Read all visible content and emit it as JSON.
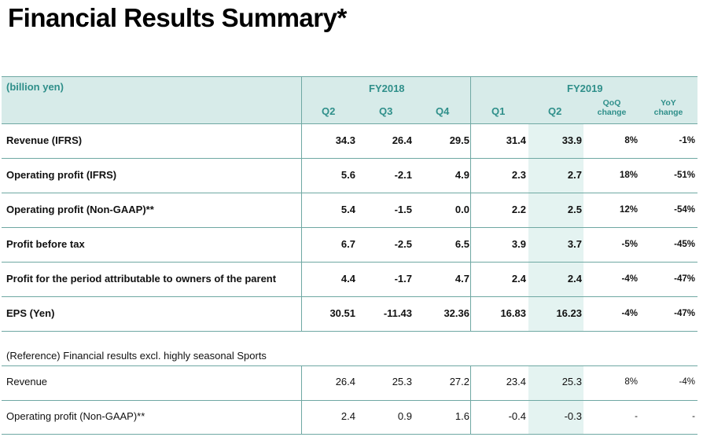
{
  "title": "Financial Results Summary*",
  "header": {
    "unit": "(billion yen)",
    "fy2018": "FY2018",
    "fy2019": "FY2019",
    "cols": [
      "Q2",
      "Q3",
      "Q4",
      "Q1",
      "Q2"
    ],
    "qoq": "QoQ change",
    "yoy": "YoY change"
  },
  "rows": [
    {
      "label": "Revenue (IFRS)",
      "values": [
        "34.3",
        "26.4",
        "29.5",
        "31.4",
        "33.9",
        "8%",
        "-1%"
      ]
    },
    {
      "label": "Operating profit (IFRS)",
      "values": [
        "5.6",
        "-2.1",
        "4.9",
        "2.3",
        "2.7",
        "18%",
        "-51%"
      ]
    },
    {
      "label": "Operating profit (Non-GAAP)**",
      "values": [
        "5.4",
        "-1.5",
        "0.0",
        "2.2",
        "2.5",
        "12%",
        "-54%"
      ]
    },
    {
      "label": "Profit before tax",
      "values": [
        "6.7",
        "-2.5",
        "6.5",
        "3.9",
        "3.7",
        "-5%",
        "-45%"
      ]
    },
    {
      "label": "Profit for the period attributable to owners of the parent",
      "values": [
        "4.4",
        "-1.7",
        "4.7",
        "2.4",
        "2.4",
        "-4%",
        "-47%"
      ]
    },
    {
      "label": "EPS (Yen)",
      "values": [
        "30.51",
        "-11.43",
        "32.36",
        "16.83",
        "16.23",
        "-4%",
        "-47%"
      ]
    }
  ],
  "reference": {
    "heading": "(Reference) Financial results excl. highly seasonal Sports",
    "rows": [
      {
        "label": "Revenue",
        "values": [
          "26.4",
          "25.3",
          "27.2",
          "23.4",
          "25.3",
          "8%",
          "-4%"
        ]
      },
      {
        "label": "Operating profit (Non-GAAP)**",
        "values": [
          "2.4",
          "0.9",
          "1.6",
          "-0.4",
          "-0.3",
          "-",
          "-"
        ]
      }
    ]
  }
}
